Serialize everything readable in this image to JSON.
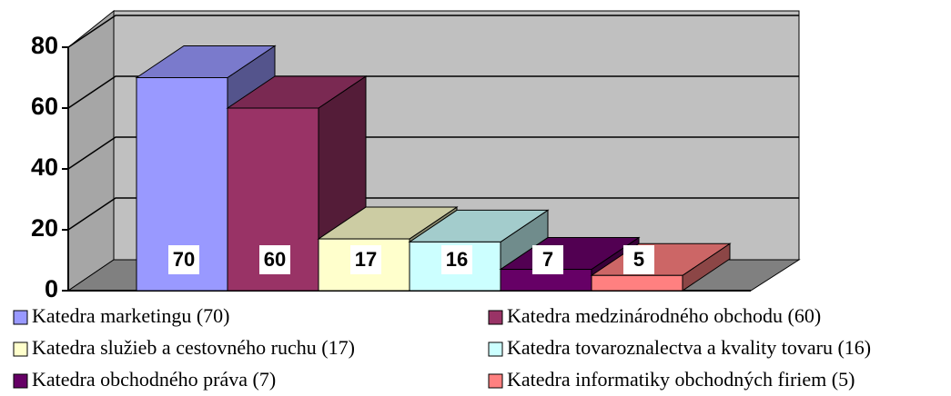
{
  "chart_data": {
    "type": "bar3d",
    "categories": [
      "Katedra marketingu (70)",
      "Katedra medzinárodného obchodu (60)",
      "Katedra služieb a cestovného ruchu (17)",
      "Katedra tovaroznalectva a kvality tovaru (16)",
      "Katedra obchodného práva (7)",
      "Katedra informatiky obchodných firiem (5)"
    ],
    "values": [
      70,
      60,
      17,
      16,
      7,
      5
    ],
    "colors": [
      "#9999ff",
      "#993366",
      "#ffffcc",
      "#ccffff",
      "#660066",
      "#ff8080"
    ],
    "ylim": [
      0,
      80
    ],
    "yticks": [
      0,
      20,
      40,
      60,
      80
    ],
    "grid": true
  }
}
